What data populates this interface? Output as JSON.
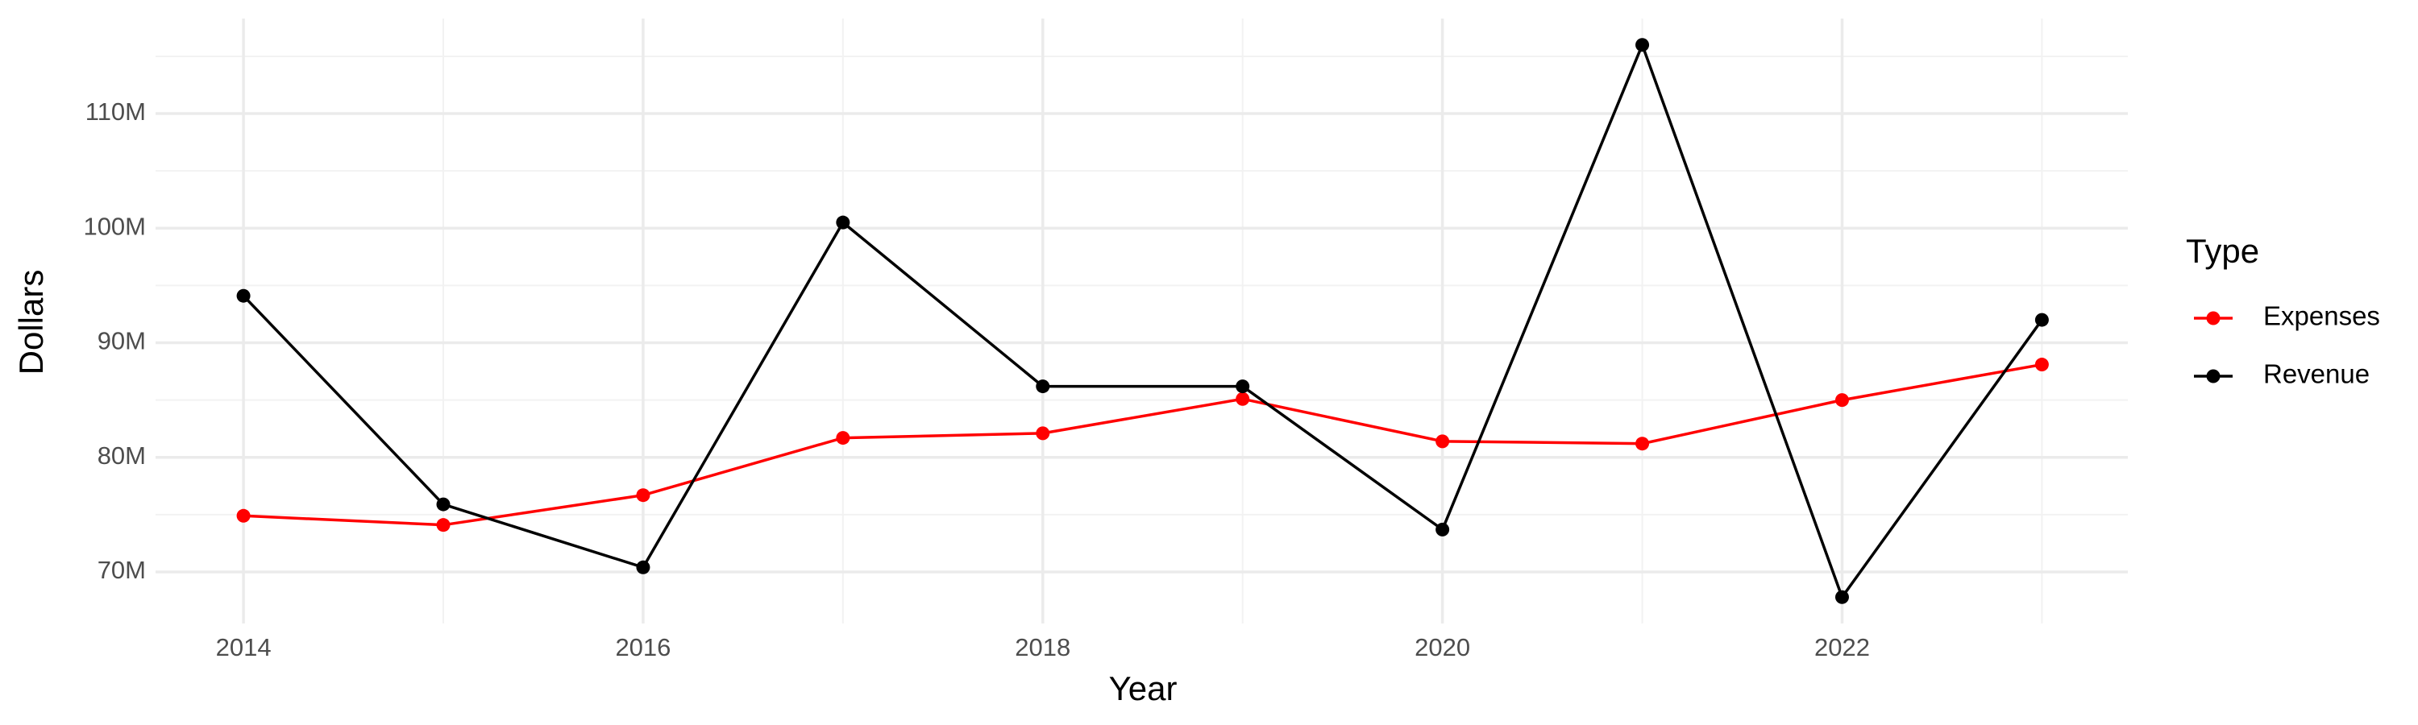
{
  "chart_data": {
    "type": "line",
    "x_label": "Year",
    "y_label": "Dollars",
    "legend_title": "Type",
    "legend_position": "right",
    "grid": true,
    "x": [
      2014,
      2015,
      2016,
      2017,
      2018,
      2019,
      2020,
      2021,
      2022,
      2023
    ],
    "series": [
      {
        "name": "Expenses",
        "color": "#ff0000",
        "values": [
          74900000,
          74100000,
          76700000,
          81700000,
          82100000,
          85100000,
          81400000,
          81200000,
          85000000,
          88100000
        ]
      },
      {
        "name": "Revenue",
        "color": "#000000",
        "values": [
          94100000,
          75900000,
          70400000,
          100500000,
          86200000,
          86200000,
          73700000,
          116000000,
          67800000,
          92000000
        ]
      }
    ],
    "xlim": [
      2013.56,
      2023.43
    ],
    "xticks": [
      2014,
      2016,
      2018,
      2020,
      2022
    ],
    "ylim": [
      65500000,
      118300000
    ],
    "yticks": [
      {
        "value": 70000000,
        "label": "70M"
      },
      {
        "value": 80000000,
        "label": "80M"
      },
      {
        "value": 90000000,
        "label": "90M"
      },
      {
        "value": 100000000,
        "label": "100M"
      },
      {
        "value": 110000000,
        "label": "110M"
      }
    ]
  }
}
